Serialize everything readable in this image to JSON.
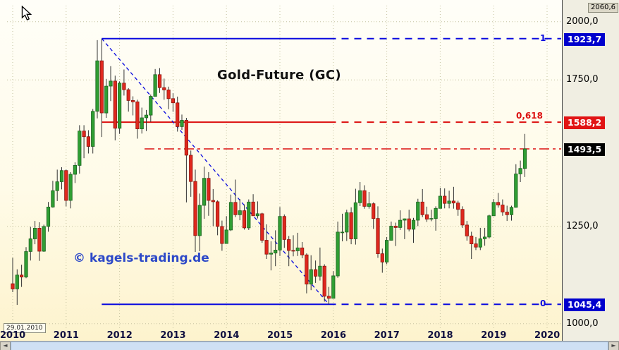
{
  "chart_data": {
    "type": "candlestick",
    "title": "Gold-Future (GC)",
    "watermark": "© kagels-trading.de",
    "start_date_label": "29.01.2010",
    "x_axis": {
      "start_year": 2010,
      "tick_labels": [
        "2010",
        "2011",
        "2012",
        "2013",
        "2014",
        "2015",
        "2016",
        "2017",
        "2018",
        "2019",
        "2020"
      ]
    },
    "y_axis": {
      "scale": "log",
      "range": [
        985,
        2075
      ],
      "ticks": [
        {
          "label": "2060,6",
          "value": 2060.6,
          "style": "cursor"
        },
        {
          "label": "2000,0",
          "value": 2000.0,
          "style": "plain"
        },
        {
          "label": "1923,7",
          "value": 1923.7,
          "style": "blue-chip"
        },
        {
          "label": "1750,0",
          "value": 1750.0,
          "style": "plain"
        },
        {
          "label": "1588,2",
          "value": 1588.2,
          "style": "red-chip"
        },
        {
          "label": "1493,5",
          "value": 1493.5,
          "style": "black-chip"
        },
        {
          "label": "1250,0",
          "value": 1250.0,
          "style": "plain"
        },
        {
          "label": "1045,4",
          "value": 1045.4,
          "style": "blue-chip"
        },
        {
          "label": "1000,0",
          "value": 1000.0,
          "style": "plain"
        }
      ]
    },
    "fibonacci": {
      "baseline": {
        "from": {
          "t": "2011-09",
          "value": 1923.7
        },
        "to": {
          "t": "2015-12",
          "value": 1045.4
        }
      },
      "levels": [
        {
          "label": "1",
          "value": 1923.7,
          "color": "blue"
        },
        {
          "label": "0,618",
          "value": 1588.2,
          "color": "red"
        },
        {
          "label": "0",
          "value": 1045.4,
          "color": "blue"
        }
      ]
    },
    "current_price_line": {
      "value": 1493.5,
      "color": "red",
      "style": "dash-dot"
    },
    "candles_format": [
      "t",
      "open",
      "high",
      "low",
      "close"
    ],
    "candles": [
      [
        "2010-01",
        1096,
        1163,
        1075,
        1083
      ],
      [
        "2010-02",
        1083,
        1133,
        1044,
        1118
      ],
      [
        "2010-03",
        1118,
        1145,
        1088,
        1113
      ],
      [
        "2010-04",
        1113,
        1192,
        1110,
        1180
      ],
      [
        "2010-05",
        1180,
        1249,
        1156,
        1215
      ],
      [
        "2010-06",
        1215,
        1266,
        1200,
        1245
      ],
      [
        "2010-07",
        1245,
        1262,
        1155,
        1181
      ],
      [
        "2010-08",
        1181,
        1255,
        1179,
        1250
      ],
      [
        "2010-09",
        1250,
        1322,
        1235,
        1307
      ],
      [
        "2010-10",
        1307,
        1388,
        1305,
        1357
      ],
      [
        "2010-11",
        1357,
        1424,
        1325,
        1385
      ],
      [
        "2010-12",
        1385,
        1432,
        1361,
        1421
      ],
      [
        "2011-01",
        1421,
        1424,
        1309,
        1327
      ],
      [
        "2011-02",
        1327,
        1416,
        1303,
        1409
      ],
      [
        "2011-03",
        1409,
        1448,
        1381,
        1438
      ],
      [
        "2011-04",
        1438,
        1577,
        1411,
        1556
      ],
      [
        "2011-05",
        1556,
        1577,
        1462,
        1536
      ],
      [
        "2011-06",
        1536,
        1559,
        1478,
        1502
      ],
      [
        "2011-07",
        1502,
        1637,
        1478,
        1628
      ],
      [
        "2011-08",
        1628,
        1917,
        1602,
        1828
      ],
      [
        "2011-09",
        1828,
        1923.7,
        1535,
        1622
      ],
      [
        "2011-10",
        1622,
        1754,
        1604,
        1725
      ],
      [
        "2011-11",
        1725,
        1806,
        1667,
        1745
      ],
      [
        "2011-12",
        1745,
        1767,
        1523,
        1566
      ],
      [
        "2012-01",
        1566,
        1744,
        1546,
        1737
      ],
      [
        "2012-02",
        1737,
        1792,
        1688,
        1711
      ],
      [
        "2012-03",
        1711,
        1717,
        1627,
        1669
      ],
      [
        "2012-04",
        1669,
        1685,
        1613,
        1664
      ],
      [
        "2012-05",
        1664,
        1672,
        1529,
        1564
      ],
      [
        "2012-06",
        1564,
        1642,
        1547,
        1604
      ],
      [
        "2012-07",
        1604,
        1633,
        1556,
        1614
      ],
      [
        "2012-08",
        1614,
        1692,
        1589,
        1685
      ],
      [
        "2012-09",
        1685,
        1794,
        1685,
        1771
      ],
      [
        "2012-10",
        1771,
        1798,
        1698,
        1719
      ],
      [
        "2012-11",
        1719,
        1755,
        1672,
        1710
      ],
      [
        "2012-12",
        1710,
        1723,
        1636,
        1676
      ],
      [
        "2013-01",
        1676,
        1697,
        1626,
        1660
      ],
      [
        "2013-02",
        1660,
        1684,
        1554,
        1572
      ],
      [
        "2013-03",
        1572,
        1616,
        1560,
        1595
      ],
      [
        "2013-04",
        1595,
        1604,
        1321,
        1472
      ],
      [
        "2013-05",
        1472,
        1488,
        1338,
        1386
      ],
      [
        "2013-06",
        1386,
        1424,
        1179,
        1224
      ],
      [
        "2013-07",
        1224,
        1348,
        1181,
        1312
      ],
      [
        "2013-08",
        1312,
        1434,
        1272,
        1396
      ],
      [
        "2013-09",
        1396,
        1416,
        1281,
        1327
      ],
      [
        "2013-10",
        1327,
        1362,
        1251,
        1323
      ],
      [
        "2013-11",
        1323,
        1327,
        1225,
        1250
      ],
      [
        "2013-12",
        1250,
        1267,
        1182,
        1202
      ],
      [
        "2014-01",
        1202,
        1280,
        1202,
        1240
      ],
      [
        "2014-02",
        1240,
        1345,
        1237,
        1321
      ],
      [
        "2014-03",
        1321,
        1392,
        1277,
        1284
      ],
      [
        "2014-04",
        1284,
        1331,
        1268,
        1296
      ],
      [
        "2014-05",
        1296,
        1315,
        1241,
        1246
      ],
      [
        "2014-06",
        1246,
        1330,
        1240,
        1322
      ],
      [
        "2014-07",
        1322,
        1346,
        1281,
        1281
      ],
      [
        "2014-08",
        1281,
        1324,
        1273,
        1287
      ],
      [
        "2014-09",
        1287,
        1290,
        1204,
        1211
      ],
      [
        "2014-10",
        1211,
        1256,
        1160,
        1173
      ],
      [
        "2014-11",
        1173,
        1208,
        1130,
        1176
      ],
      [
        "2014-12",
        1176,
        1239,
        1141,
        1184
      ],
      [
        "2015-01",
        1184,
        1307,
        1168,
        1279
      ],
      [
        "2015-02",
        1279,
        1285,
        1190,
        1213
      ],
      [
        "2015-03",
        1213,
        1223,
        1141,
        1183
      ],
      [
        "2015-04",
        1183,
        1225,
        1167,
        1182
      ],
      [
        "2015-05",
        1182,
        1232,
        1168,
        1190
      ],
      [
        "2015-06",
        1190,
        1206,
        1162,
        1171
      ],
      [
        "2015-07",
        1171,
        1175,
        1072,
        1095
      ],
      [
        "2015-08",
        1095,
        1170,
        1080,
        1132
      ],
      [
        "2015-09",
        1132,
        1156,
        1098,
        1115
      ],
      [
        "2015-10",
        1115,
        1191,
        1104,
        1141
      ],
      [
        "2015-11",
        1141,
        1146,
        1052,
        1065
      ],
      [
        "2015-12",
        1065,
        1088,
        1045.4,
        1060
      ],
      [
        "2016-01",
        1060,
        1128,
        1060,
        1116
      ],
      [
        "2016-02",
        1116,
        1264,
        1111,
        1234
      ],
      [
        "2016-03",
        1234,
        1287,
        1208,
        1234
      ],
      [
        "2016-04",
        1234,
        1299,
        1209,
        1290
      ],
      [
        "2016-05",
        1290,
        1306,
        1200,
        1215
      ],
      [
        "2016-06",
        1215,
        1363,
        1199,
        1320
      ],
      [
        "2016-07",
        1320,
        1384,
        1310,
        1357
      ],
      [
        "2016-08",
        1357,
        1374,
        1302,
        1309
      ],
      [
        "2016-09",
        1309,
        1353,
        1302,
        1317
      ],
      [
        "2016-10",
        1317,
        1321,
        1243,
        1273
      ],
      [
        "2016-11",
        1273,
        1309,
        1163,
        1174
      ],
      [
        "2016-12",
        1174,
        1188,
        1124,
        1152
      ],
      [
        "2017-01",
        1152,
        1220,
        1146,
        1211
      ],
      [
        "2017-02",
        1211,
        1264,
        1210,
        1251
      ],
      [
        "2017-03",
        1251,
        1261,
        1195,
        1247
      ],
      [
        "2017-04",
        1247,
        1297,
        1240,
        1268
      ],
      [
        "2017-05",
        1268,
        1273,
        1214,
        1272
      ],
      [
        "2017-06",
        1272,
        1299,
        1236,
        1242
      ],
      [
        "2017-07",
        1242,
        1275,
        1204,
        1268
      ],
      [
        "2017-08",
        1268,
        1332,
        1251,
        1322
      ],
      [
        "2017-09",
        1322,
        1362,
        1277,
        1284
      ],
      [
        "2017-10",
        1284,
        1308,
        1263,
        1271
      ],
      [
        "2017-11",
        1271,
        1299,
        1265,
        1273
      ],
      [
        "2017-12",
        1273,
        1309,
        1238,
        1303
      ],
      [
        "2018-01",
        1303,
        1366,
        1303,
        1340
      ],
      [
        "2018-02",
        1340,
        1364,
        1303,
        1318
      ],
      [
        "2018-03",
        1318,
        1357,
        1303,
        1325
      ],
      [
        "2018-04",
        1325,
        1369,
        1302,
        1319
      ],
      [
        "2018-05",
        1319,
        1326,
        1281,
        1300
      ],
      [
        "2018-06",
        1300,
        1309,
        1246,
        1254
      ],
      [
        "2018-07",
        1254,
        1266,
        1210,
        1223
      ],
      [
        "2018-08",
        1223,
        1235,
        1160,
        1201
      ],
      [
        "2018-09",
        1201,
        1220,
        1184,
        1192
      ],
      [
        "2018-10",
        1192,
        1246,
        1184,
        1215
      ],
      [
        "2018-11",
        1215,
        1246,
        1196,
        1220
      ],
      [
        "2018-12",
        1220,
        1284,
        1216,
        1281
      ],
      [
        "2019-01",
        1281,
        1331,
        1281,
        1321
      ],
      [
        "2019-02",
        1321,
        1350,
        1305,
        1313
      ],
      [
        "2019-03",
        1313,
        1330,
        1281,
        1292
      ],
      [
        "2019-04",
        1292,
        1311,
        1266,
        1284
      ],
      [
        "2019-05",
        1284,
        1311,
        1267,
        1306
      ],
      [
        "2019-06",
        1306,
        1442,
        1305,
        1410
      ],
      [
        "2019-07",
        1410,
        1454,
        1384,
        1428
      ],
      [
        "2019-08",
        1428,
        1546,
        1400,
        1493.5
      ]
    ]
  },
  "colors": {
    "up": "#2f9e33",
    "up_border": "#1c6420",
    "down": "#e0281e",
    "down_border": "#8c150e",
    "wick": "#333333",
    "blue": "#0a0adf",
    "red": "#dc1010",
    "grid": "#c6c29f",
    "axis_text": "#000000"
  },
  "scrollbar": {
    "left_arrow": "◄",
    "right_arrow": "►"
  }
}
